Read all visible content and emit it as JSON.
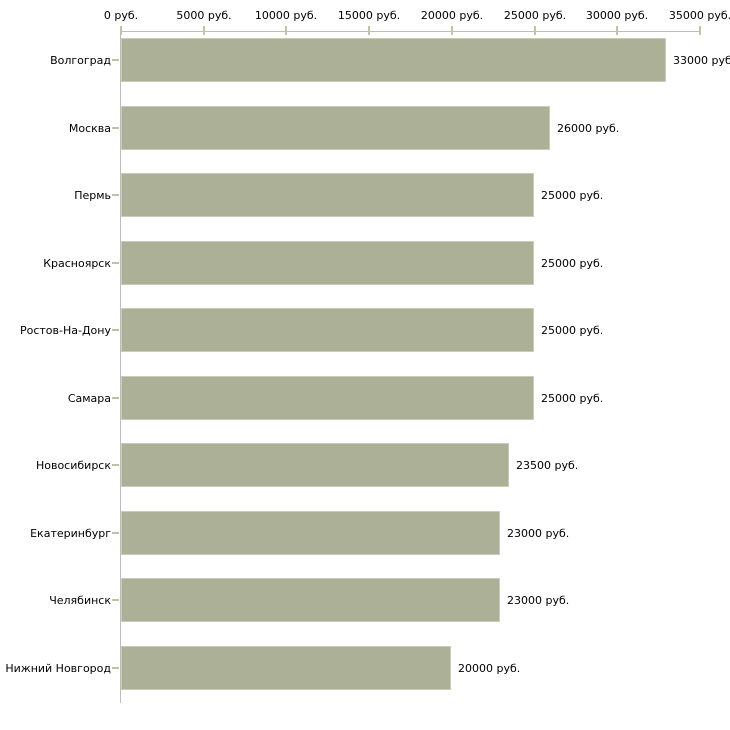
{
  "chart_data": {
    "type": "bar",
    "orientation": "horizontal",
    "title": "",
    "categories": [
      "Волгоград",
      "Москва",
      "Пермь",
      "Красноярск",
      "Ростов-На-Дону",
      "Самара",
      "Новосибирск",
      "Екатеринбург",
      "Челябинск",
      "Нижний Новгород"
    ],
    "values": [
      33000,
      26000,
      25000,
      25000,
      25000,
      25000,
      23500,
      23000,
      23000,
      20000
    ],
    "value_labels": [
      "33000 руб",
      "26000 руб.",
      "25000 руб.",
      "25000 руб.",
      "25000 руб.",
      "25000 руб.",
      "23500 руб.",
      "23000 руб.",
      "23000 руб.",
      "20000 руб."
    ],
    "x_axis": {
      "position": "top",
      "min": 0,
      "max": 35000,
      "tick_step": 5000,
      "tick_values": [
        0,
        5000,
        10000,
        15000,
        20000,
        25000,
        30000,
        35000
      ],
      "tick_labels": [
        "0 руб.",
        "5000 руб.",
        "10000 руб.",
        "15000 руб.",
        "20000 руб.",
        "25000 руб.",
        "30000 руб.",
        "35000 руб."
      ]
    },
    "grid": "off",
    "legend": "none",
    "colors": {
      "bar_fill": "#abb096",
      "bar_border": "#c9ccba",
      "axis_line": "#bdbdbd",
      "axis_tick": "#c3c59c",
      "category_tick": "#bdc1a6",
      "text": "#000000",
      "background": "#ffffff"
    }
  }
}
